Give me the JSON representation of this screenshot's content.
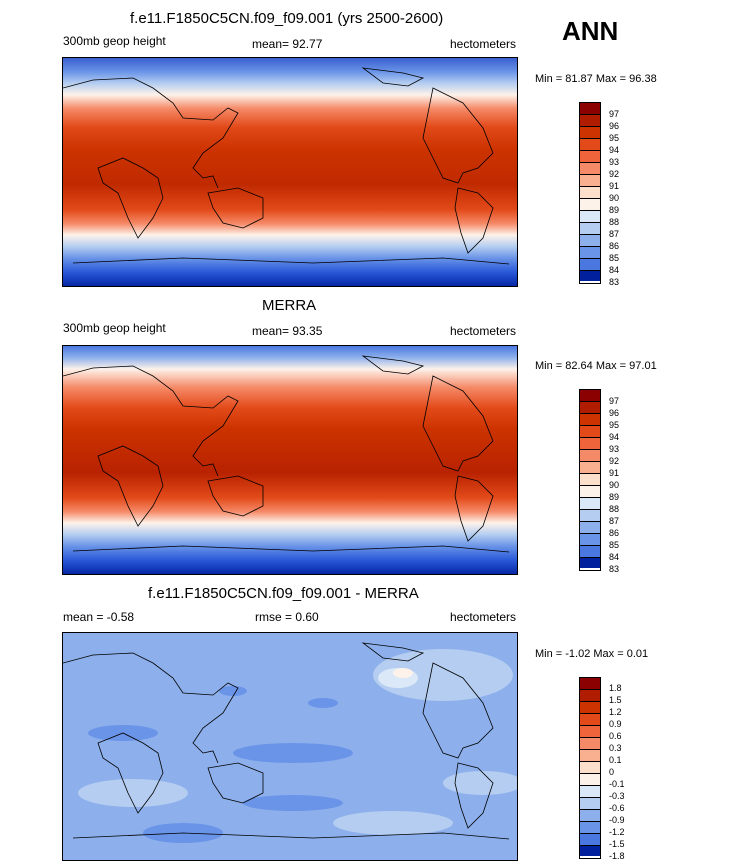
{
  "season": "ANN",
  "panels": [
    {
      "title": "f.e11.F1850C5CN.f09_f09.001 (yrs 2500-2600)",
      "left_label": "300mb geop height",
      "center_label": "mean=  92.77",
      "right_label": "hectometers",
      "minmax": "Min =  81.87 Max =  96.38",
      "legend_labels": [
        "97",
        "96",
        "95",
        "94",
        "93",
        "92",
        "91",
        "90",
        "89",
        "88",
        "87",
        "86",
        "85",
        "84",
        "83"
      ]
    },
    {
      "title": "MERRA",
      "left_label": "300mb geop height",
      "center_label": "mean=  93.35",
      "right_label": "hectometers",
      "minmax": "Min =  82.64 Max =  97.01",
      "legend_labels": [
        "97",
        "96",
        "95",
        "94",
        "93",
        "92",
        "91",
        "90",
        "89",
        "88",
        "87",
        "86",
        "85",
        "84",
        "83"
      ]
    },
    {
      "title": "f.e11.F1850C5CN.f09_f09.001 - MERRA",
      "left_label": "mean =  -0.58",
      "center_label": "rmse =   0.60",
      "right_label": "hectometers",
      "minmax": "Min =  -1.02 Max =   0.01",
      "legend_labels": [
        "1.8",
        "1.5",
        "1.2",
        "0.9",
        "0.6",
        "0.3",
        "0.1",
        "0",
        "-0.1",
        "-0.3",
        "-0.6",
        "-0.9",
        "-1.2",
        "-1.5",
        "-1.8"
      ]
    }
  ],
  "colors": {
    "full_scale": [
      "#8b0000",
      "#b01c00",
      "#cc3300",
      "#e34a1a",
      "#f0643c",
      "#f58a68",
      "#f9b090",
      "#fde0cc",
      "#fdf2ea",
      "#dbe8f8",
      "#b4cdf0",
      "#8db0ec",
      "#6a94e8",
      "#4a78e0",
      "#2a5ad8",
      "#1540c8",
      "#00209e"
    ]
  }
}
